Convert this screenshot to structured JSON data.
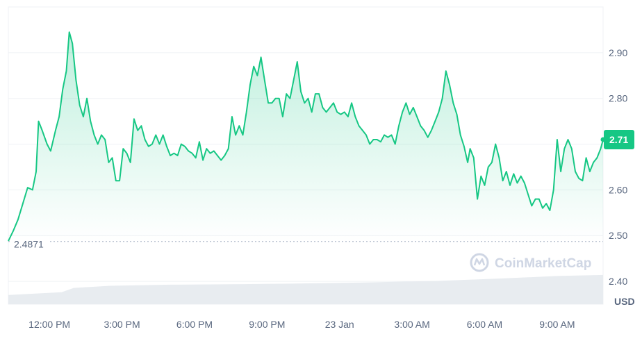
{
  "chart_data": {
    "type": "area",
    "currency": "USD",
    "baseline_label": "2.4871",
    "baseline_value": 2.4871,
    "current_price_label": "2.71",
    "current_price": 2.71,
    "watermark": "CoinMarketCap",
    "ylim": [
      2.35,
      3.0
    ],
    "y_ticks": [
      {
        "value": 2.9,
        "label": "2.90"
      },
      {
        "value": 2.8,
        "label": "2.80"
      },
      {
        "value": 2.7,
        "label": "2.70"
      },
      {
        "value": 2.6,
        "label": "2.60"
      },
      {
        "value": 2.5,
        "label": "2.50"
      },
      {
        "value": 2.4,
        "label": "2.40"
      }
    ],
    "x_ticks": [
      {
        "hour": 0,
        "label": "12:00 PM"
      },
      {
        "hour": 3,
        "label": "3:00 PM"
      },
      {
        "hour": 6,
        "label": "6:00 PM"
      },
      {
        "hour": 9,
        "label": "9:00 PM"
      },
      {
        "hour": 12,
        "label": "23 Jan"
      },
      {
        "hour": 15,
        "label": "3:00 AM"
      },
      {
        "hour": 18,
        "label": "6:00 AM"
      },
      {
        "hour": 21,
        "label": "9:00 AM"
      }
    ],
    "x_range_hours": [
      -1.7,
      22.9
    ],
    "series": [
      {
        "values": [
          [
            -1.7,
            2.488
          ],
          [
            -1.5,
            2.51
          ],
          [
            -1.3,
            2.535
          ],
          [
            -1.1,
            2.57
          ],
          [
            -0.9,
            2.605
          ],
          [
            -0.7,
            2.6
          ],
          [
            -0.55,
            2.64
          ],
          [
            -0.45,
            2.75
          ],
          [
            -0.3,
            2.73
          ],
          [
            -0.1,
            2.7
          ],
          [
            0.05,
            2.685
          ],
          [
            0.25,
            2.73
          ],
          [
            0.4,
            2.76
          ],
          [
            0.55,
            2.82
          ],
          [
            0.7,
            2.86
          ],
          [
            0.82,
            2.945
          ],
          [
            0.95,
            2.92
          ],
          [
            1.1,
            2.84
          ],
          [
            1.25,
            2.785
          ],
          [
            1.4,
            2.76
          ],
          [
            1.55,
            2.8
          ],
          [
            1.7,
            2.75
          ],
          [
            1.85,
            2.72
          ],
          [
            2.0,
            2.7
          ],
          [
            2.15,
            2.72
          ],
          [
            2.3,
            2.71
          ],
          [
            2.45,
            2.66
          ],
          [
            2.6,
            2.67
          ],
          [
            2.75,
            2.62
          ],
          [
            2.9,
            2.62
          ],
          [
            3.05,
            2.69
          ],
          [
            3.2,
            2.68
          ],
          [
            3.35,
            2.66
          ],
          [
            3.5,
            2.755
          ],
          [
            3.65,
            2.73
          ],
          [
            3.8,
            2.74
          ],
          [
            3.95,
            2.71
          ],
          [
            4.1,
            2.695
          ],
          [
            4.25,
            2.7
          ],
          [
            4.4,
            2.72
          ],
          [
            4.55,
            2.7
          ],
          [
            4.7,
            2.72
          ],
          [
            4.85,
            2.695
          ],
          [
            5.0,
            2.675
          ],
          [
            5.15,
            2.68
          ],
          [
            5.3,
            2.675
          ],
          [
            5.45,
            2.7
          ],
          [
            5.6,
            2.695
          ],
          [
            5.75,
            2.685
          ],
          [
            5.9,
            2.68
          ],
          [
            6.05,
            2.67
          ],
          [
            6.2,
            2.705
          ],
          [
            6.35,
            2.665
          ],
          [
            6.5,
            2.69
          ],
          [
            6.65,
            2.68
          ],
          [
            6.8,
            2.685
          ],
          [
            6.95,
            2.675
          ],
          [
            7.1,
            2.665
          ],
          [
            7.25,
            2.675
          ],
          [
            7.4,
            2.69
          ],
          [
            7.55,
            2.76
          ],
          [
            7.7,
            2.72
          ],
          [
            7.85,
            2.74
          ],
          [
            8.0,
            2.72
          ],
          [
            8.15,
            2.77
          ],
          [
            8.3,
            2.83
          ],
          [
            8.45,
            2.87
          ],
          [
            8.6,
            2.85
          ],
          [
            8.75,
            2.89
          ],
          [
            8.9,
            2.84
          ],
          [
            9.05,
            2.79
          ],
          [
            9.2,
            2.79
          ],
          [
            9.35,
            2.8
          ],
          [
            9.5,
            2.8
          ],
          [
            9.65,
            2.76
          ],
          [
            9.8,
            2.81
          ],
          [
            9.95,
            2.8
          ],
          [
            10.1,
            2.84
          ],
          [
            10.25,
            2.88
          ],
          [
            10.4,
            2.815
          ],
          [
            10.55,
            2.79
          ],
          [
            10.7,
            2.8
          ],
          [
            10.85,
            2.77
          ],
          [
            11.0,
            2.81
          ],
          [
            11.15,
            2.81
          ],
          [
            11.3,
            2.78
          ],
          [
            11.45,
            2.77
          ],
          [
            11.6,
            2.78
          ],
          [
            11.75,
            2.79
          ],
          [
            11.9,
            2.77
          ],
          [
            12.05,
            2.765
          ],
          [
            12.2,
            2.77
          ],
          [
            12.35,
            2.76
          ],
          [
            12.5,
            2.79
          ],
          [
            12.65,
            2.76
          ],
          [
            12.8,
            2.74
          ],
          [
            12.95,
            2.73
          ],
          [
            13.1,
            2.72
          ],
          [
            13.25,
            2.7
          ],
          [
            13.4,
            2.71
          ],
          [
            13.55,
            2.71
          ],
          [
            13.7,
            2.705
          ],
          [
            13.85,
            2.72
          ],
          [
            14.0,
            2.715
          ],
          [
            14.15,
            2.72
          ],
          [
            14.3,
            2.7
          ],
          [
            14.45,
            2.74
          ],
          [
            14.6,
            2.77
          ],
          [
            14.75,
            2.79
          ],
          [
            14.9,
            2.765
          ],
          [
            15.05,
            2.78
          ],
          [
            15.2,
            2.76
          ],
          [
            15.35,
            2.74
          ],
          [
            15.5,
            2.73
          ],
          [
            15.65,
            2.715
          ],
          [
            15.8,
            2.73
          ],
          [
            15.95,
            2.75
          ],
          [
            16.1,
            2.77
          ],
          [
            16.25,
            2.8
          ],
          [
            16.4,
            2.86
          ],
          [
            16.55,
            2.83
          ],
          [
            16.7,
            2.79
          ],
          [
            16.85,
            2.765
          ],
          [
            17.0,
            2.72
          ],
          [
            17.15,
            2.695
          ],
          [
            17.3,
            2.66
          ],
          [
            17.4,
            2.69
          ],
          [
            17.55,
            2.67
          ],
          [
            17.7,
            2.58
          ],
          [
            17.85,
            2.63
          ],
          [
            18.0,
            2.61
          ],
          [
            18.15,
            2.65
          ],
          [
            18.3,
            2.66
          ],
          [
            18.45,
            2.7
          ],
          [
            18.6,
            2.67
          ],
          [
            18.75,
            2.62
          ],
          [
            18.9,
            2.64
          ],
          [
            19.05,
            2.61
          ],
          [
            19.2,
            2.635
          ],
          [
            19.35,
            2.615
          ],
          [
            19.5,
            2.63
          ],
          [
            19.65,
            2.615
          ],
          [
            19.8,
            2.59
          ],
          [
            19.95,
            2.565
          ],
          [
            20.1,
            2.58
          ],
          [
            20.25,
            2.58
          ],
          [
            20.4,
            2.56
          ],
          [
            20.55,
            2.57
          ],
          [
            20.7,
            2.555
          ],
          [
            20.85,
            2.6
          ],
          [
            21.0,
            2.71
          ],
          [
            21.15,
            2.64
          ],
          [
            21.3,
            2.69
          ],
          [
            21.45,
            2.71
          ],
          [
            21.6,
            2.69
          ],
          [
            21.75,
            2.64
          ],
          [
            21.9,
            2.625
          ],
          [
            22.05,
            2.62
          ],
          [
            22.2,
            2.67
          ],
          [
            22.35,
            2.64
          ],
          [
            22.5,
            2.66
          ],
          [
            22.65,
            2.67
          ],
          [
            22.8,
            2.69
          ],
          [
            22.9,
            2.71
          ]
        ]
      }
    ],
    "volume": {
      "values": [
        [
          -1.7,
          0.17
        ],
        [
          0.5,
          0.22
        ],
        [
          1.0,
          0.3
        ],
        [
          2.5,
          0.34
        ],
        [
          5.0,
          0.36
        ],
        [
          8.0,
          0.37
        ],
        [
          10.0,
          0.38
        ],
        [
          13.0,
          0.4
        ],
        [
          16.0,
          0.43
        ],
        [
          18.5,
          0.47
        ],
        [
          21.0,
          0.52
        ],
        [
          22.9,
          0.54
        ]
      ]
    },
    "colors": {
      "line": "#16c784",
      "fill_top": "#16c784",
      "grid": "#eff2f5",
      "axis_text": "#58667e",
      "volume": "#e8ecf0",
      "watermark": "#cfd6e4",
      "price_tag_bg": "#16c784",
      "price_tag_text": "#ffffff",
      "baseline": "#a6b0c3",
      "currency_text": "#58667e"
    }
  }
}
